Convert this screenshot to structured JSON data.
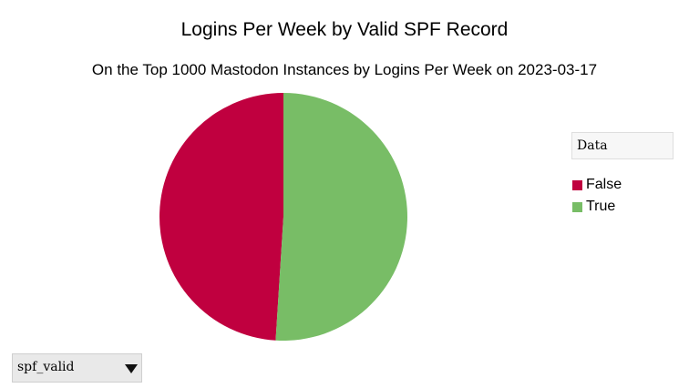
{
  "chart_data": {
    "type": "pie",
    "title": "Logins Per Week by Valid SPF Record",
    "subtitle": "On the Top 1000 Mastodon Instances by Logins Per Week on 2023-03-17",
    "legend_title": "Data",
    "legend_placement": "right",
    "slices": [
      {
        "label": "False",
        "value": 49,
        "color": "#c0003f"
      },
      {
        "label": "True",
        "value": 51,
        "color": "#78bd66"
      }
    ]
  },
  "controls": {
    "field_select": {
      "selected": "spf_valid"
    }
  }
}
